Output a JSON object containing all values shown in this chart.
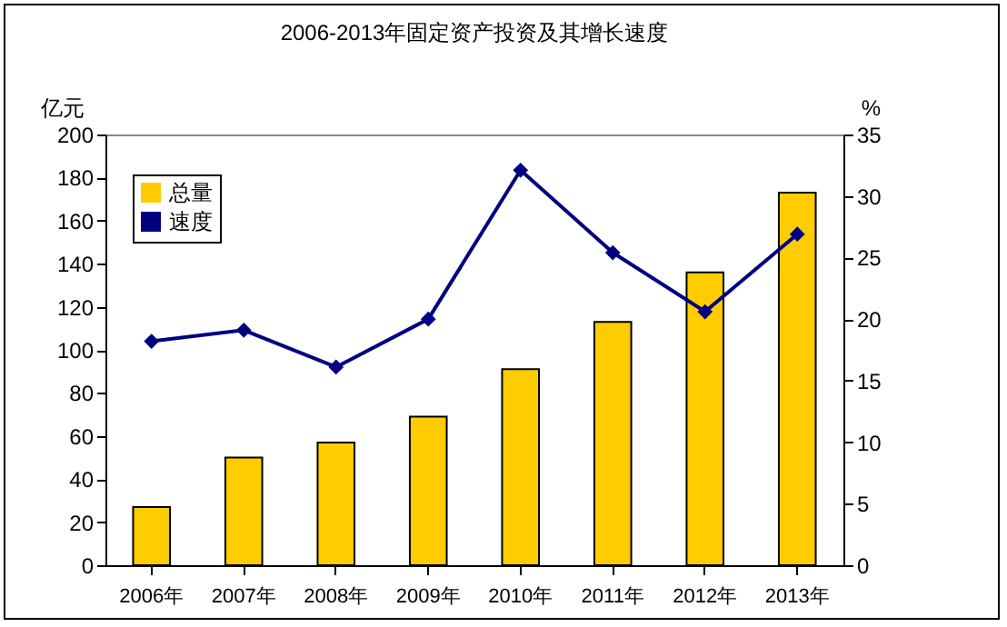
{
  "chart_data": {
    "type": "bar",
    "title": "2006-2013年固定资产投资及其增长速度",
    "ylabel": "亿元",
    "y2label": "%",
    "categories": [
      "2006年",
      "2007年",
      "2008年",
      "2009年",
      "2010年",
      "2011年",
      "2012年",
      "2013年"
    ],
    "series": [
      {
        "name": "总量",
        "color": "#ffcc00",
        "values": [
          27,
          50,
          57,
          69,
          91,
          113,
          136,
          173
        ]
      },
      {
        "name": "速度",
        "type": "line",
        "axis": "y2",
        "color": "#000080",
        "values": [
          18.2,
          19.1,
          16.1,
          20,
          32.1,
          25.4,
          20.6,
          26.9
        ]
      }
    ],
    "ylim": [
      0,
      200
    ],
    "yticks": [
      0,
      20,
      40,
      60,
      80,
      100,
      120,
      140,
      160,
      180,
      200
    ],
    "y2lim": [
      0,
      35
    ],
    "y2ticks": [
      0,
      5,
      10,
      15,
      20,
      25,
      30,
      35
    ],
    "legend": "top left",
    "marker": "diamond",
    "line_style": "solid"
  }
}
